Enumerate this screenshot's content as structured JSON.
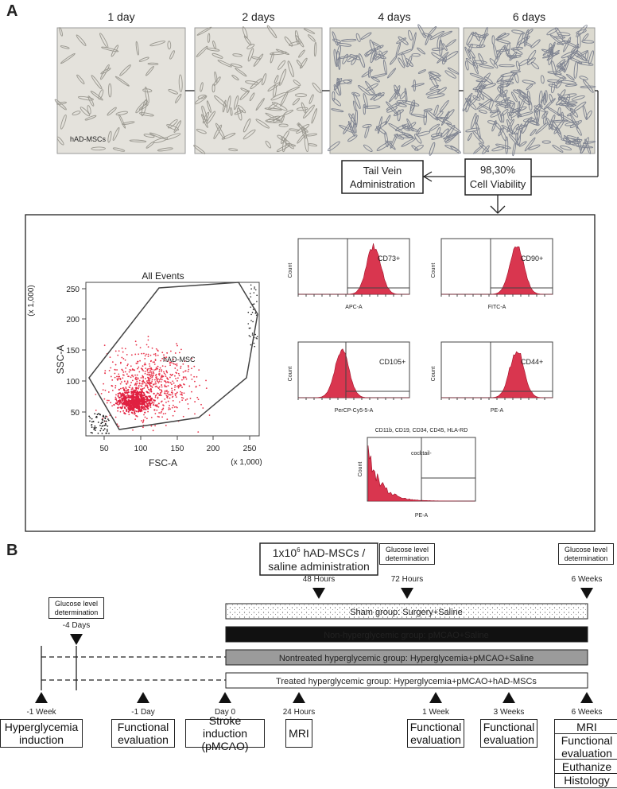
{
  "panel_a": {
    "label": "A",
    "timepoints": [
      "1 day",
      "2 days",
      "4 days",
      "6 days"
    ],
    "image_label": "hAD-MSCs",
    "viability": [
      "98,30%",
      "Cell Viability"
    ],
    "administration": [
      "Tail Vein",
      "Administration"
    ],
    "scatter": {
      "title": "All Events",
      "ylabel": "SSC-A",
      "xlabel": "FSC-A",
      "yunit": "(x 1,000)",
      "xunit": "(x 1,000)",
      "gate": "hAD-MSC",
      "xticks": [
        "50",
        "100",
        "150",
        "200",
        "250"
      ],
      "yticks": [
        "50",
        "100",
        "150",
        "200",
        "250"
      ]
    },
    "count_label": "Count",
    "histograms": [
      {
        "marker": "CD73+",
        "xlabel": "APC-A"
      },
      {
        "marker": "CD90+",
        "xlabel": "FITC-A"
      },
      {
        "marker": "CD105+",
        "xlabel": "PerCP-Cy5-5-A"
      },
      {
        "marker": "CD44+",
        "xlabel": "PE-A"
      }
    ],
    "cocktail": {
      "title": "CD11b, CD19, CD34, CD45, HLA-RD",
      "marker": "cocktail-",
      "xlabel": "PE-A"
    }
  },
  "panel_b": {
    "label": "B",
    "administration": {
      "line1": "1x10",
      "sup": "6",
      "line1_end": " hAD-MSCs /",
      "line2": "saline administration"
    },
    "glucose": "Glucose level determination",
    "top_times": [
      "48 Hours",
      "72 Hours",
      "6 Weeks",
      "-4 Days"
    ],
    "groups": [
      "Sham group: Surgery+Saline",
      "Non-hyperglycemic group: pMCAO+Saline",
      "Nontreated hyperglycemic group: Hyperglycemia+pMCAO+Saline",
      "Treated hyperglycemic group: Hyperglycemia+pMCAO+hAD-MSCs"
    ],
    "timeline": [
      {
        "time": "-1 Week",
        "events": [
          "Hyperglycemia induction"
        ]
      },
      {
        "time": "-1 Day",
        "events": [
          "Functional evaluation"
        ]
      },
      {
        "time": "Day 0",
        "events": [
          "Stroke induction (pMCAO)"
        ]
      },
      {
        "time": "24 Hours",
        "events": [
          "MRI"
        ]
      },
      {
        "time": "1 Week",
        "events": [
          "Functional evaluation"
        ]
      },
      {
        "time": "3 Weeks",
        "events": [
          "Functional evaluation"
        ]
      },
      {
        "time": "6 Weeks",
        "events": [
          "MRI",
          "Functional evaluation",
          "Euthanize",
          "Histology"
        ]
      }
    ]
  }
}
